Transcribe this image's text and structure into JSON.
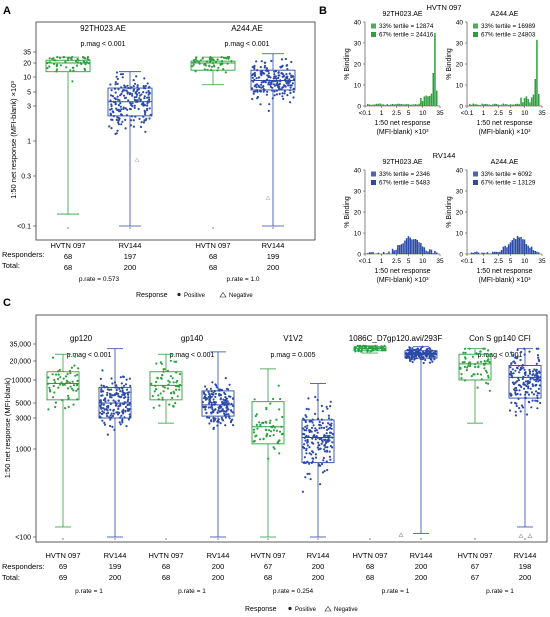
{
  "colors": {
    "hvtn": "#2e9e3e",
    "rv": "#2c4aa8",
    "axis": "#333333",
    "box_fill": "#ffffff"
  },
  "panelA": {
    "letter": "A",
    "ylabel": "1:50 net response (MFI-blank) ×10³",
    "yticks": [
      "35",
      "20",
      "10",
      "5",
      "3",
      "1",
      "0.3",
      "<0.1"
    ],
    "row_labels": {
      "responders": "Responders:",
      "total": "Total:"
    },
    "legend": {
      "title": "Response",
      "positive": "Positive",
      "negative": "Negative"
    }
  },
  "panelB": {
    "letter": "B",
    "group_titles": [
      "HVTN 097",
      "RV144"
    ],
    "ylabel": "% Binding",
    "xlabel_line1": "1:50 net response",
    "xlabel_line2": "(MFI-blank) ×10³",
    "yticks": [
      "0",
      "10",
      "20",
      "30",
      "40"
    ],
    "xticks": [
      "<0.1",
      "1",
      "2.5",
      "5",
      "10",
      "35"
    ]
  },
  "panelC": {
    "letter": "C",
    "ylabel": "1:50 net response (MFI-blank)",
    "yticks": [
      "35,000",
      "20,000",
      "10000",
      "5000",
      "3000",
      "1000",
      "<100"
    ],
    "row_labels": {
      "responders": "Responders:",
      "total": "Total:"
    },
    "legend": {
      "title": "Response",
      "positive": "Positive",
      "negative": "Negative"
    }
  },
  "chart_data": [
    {
      "type": "box",
      "panel": "A",
      "groups": [
        {
          "antigen": "92TH023.AE",
          "pmag": "p.mag < 0.001",
          "prate": "p.rate = 0.573",
          "categories": [
            "HVTN 097",
            "RV144"
          ],
          "responders": [
            68,
            197
          ],
          "total": [
            68,
            200
          ],
          "boxes": [
            {
              "q1": 13,
              "median": 20,
              "q3": 23,
              "wlo": 0.13,
              "whi": 27
            },
            {
              "q1": 2.2,
              "median": 3.5,
              "q3": 6,
              "wlo": 0.1,
              "whi": 13
            }
          ]
        },
        {
          "antigen": "A244.AE",
          "pmag": "p.mag < 0.001",
          "prate": "p.rate = 1.0",
          "categories": [
            "HVTN 097",
            "RV144"
          ],
          "responders": [
            68,
            199
          ],
          "total": [
            68,
            200
          ],
          "boxes": [
            {
              "q1": 14,
              "median": 20,
              "q3": 22,
              "wlo": 7,
              "whi": 27
            },
            {
              "q1": 5.5,
              "median": 8.5,
              "q3": 14,
              "wlo": 0.1,
              "whi": 32
            }
          ]
        }
      ]
    },
    {
      "type": "bar",
      "panel": "B",
      "subplots": [
        {
          "group": "HVTN 097",
          "antigen": "92TH023.AE",
          "tertile33": "33% tertile = 12874",
          "tertile67": "67% tertile = 24416"
        },
        {
          "group": "HVTN 097",
          "antigen": "A244.AE",
          "tertile33": "33% tertile = 16989",
          "tertile67": "67% tertile = 24803"
        },
        {
          "group": "RV144",
          "antigen": "92TH023.AE",
          "tertile33": "33% tertile = 2346",
          "tertile67": "67% tertile = 5483"
        },
        {
          "group": "RV144",
          "antigen": "A244.AE",
          "tertile33": "33% tertile = 6092",
          "tertile67": "67% tertile = 13129"
        }
      ]
    },
    {
      "type": "box",
      "panel": "C",
      "groups": [
        {
          "antigen": "gp120",
          "pmag": "p.mag < 0.001",
          "prate": "p.rate = 1",
          "categories": [
            "HVTN 097",
            "RV144"
          ],
          "responders": [
            69,
            199
          ],
          "total": [
            69,
            200
          ],
          "boxes": [
            {
              "q1": 5500,
              "median": 9000,
              "q3": 13500,
              "wlo": 130,
              "whi": 25000
            },
            {
              "q1": 3000,
              "median": 5000,
              "q3": 8000,
              "wlo": 100,
              "whi": 30000
            }
          ]
        },
        {
          "antigen": "gp140",
          "pmag": "p.mag < 0.001",
          "prate": "p.rate = 1",
          "categories": [
            "HVTN 097",
            "RV144"
          ],
          "responders": [
            68,
            200
          ],
          "total": [
            68,
            200
          ],
          "boxes": [
            {
              "q1": 5500,
              "median": 8500,
              "q3": 13500,
              "wlo": 2500,
              "whi": 25000
            },
            {
              "q1": 3200,
              "median": 4700,
              "q3": 7200,
              "wlo": 100,
              "whi": 27000
            }
          ]
        },
        {
          "antigen": "V1V2",
          "pmag": "p.mag = 0.005",
          "prate": "p.rate = 0.254",
          "categories": [
            "HVTN 097",
            "RV144"
          ],
          "responders": [
            67,
            200
          ],
          "total": [
            68,
            200
          ],
          "boxes": [
            {
              "q1": 1200,
              "median": 2200,
              "q3": 5200,
              "wlo": 100,
              "whi": 15000
            },
            {
              "q1": 700,
              "median": 1500,
              "q3": 2800,
              "wlo": 100,
              "whi": 9000
            }
          ]
        },
        {
          "antigen": "1086C_D7gp120.avi/293F",
          "pmag": "",
          "prate": "p.rate = 1",
          "categories": [
            "HVTN 097",
            "RV144"
          ],
          "responders": [
            68,
            200
          ],
          "total": [
            68,
            200
          ],
          "boxes": [
            {
              "q1": 28000,
              "median": 30000,
              "q3": 32000,
              "wlo": 26000,
              "whi": 33000
            },
            {
              "q1": 22000,
              "median": 25000,
              "q3": 28000,
              "wlo": 110,
              "whi": 32000
            }
          ]
        },
        {
          "antigen": "Con S gp140 CFI",
          "pmag": "p.mag < 0.001",
          "prate": "p.rate = 1",
          "categories": [
            "HVTN 097",
            "RV144"
          ],
          "responders": [
            67,
            198
          ],
          "total": [
            67,
            200
          ],
          "boxes": [
            {
              "q1": 10000,
              "median": 18000,
              "q3": 25000,
              "wlo": 2500,
              "whi": 30000
            },
            {
              "q1": 5800,
              "median": 11000,
              "q3": 17000,
              "wlo": 130,
              "whi": 30000
            }
          ]
        }
      ]
    }
  ]
}
